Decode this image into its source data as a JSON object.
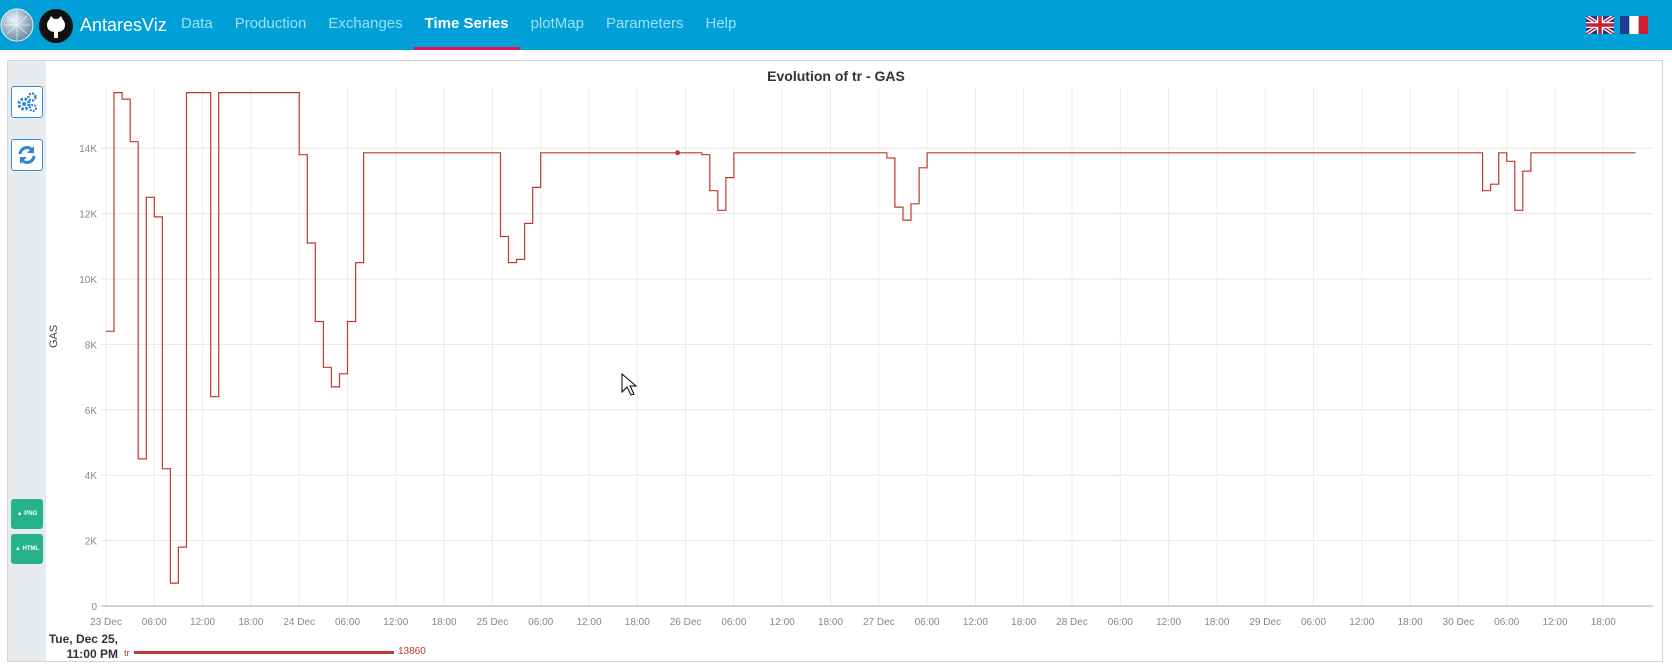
{
  "app": {
    "brand": "AntaresViz",
    "nav": [
      {
        "label": "Data",
        "active": false
      },
      {
        "label": "Production",
        "active": false
      },
      {
        "label": "Exchanges",
        "active": false
      },
      {
        "label": "Time Series",
        "active": true
      },
      {
        "label": "plotMap",
        "active": false
      },
      {
        "label": "Parameters",
        "active": false
      },
      {
        "label": "Help",
        "active": false
      }
    ],
    "languages": [
      "English (UK flag)",
      "French (FR flag)"
    ]
  },
  "sidebar": {
    "settings_icon": "gears-icon",
    "refresh_icon": "refresh-icon",
    "png_label": "PNG",
    "html_label": "HTML"
  },
  "colors": {
    "topbar": "#01a0d8",
    "series": "#c0392b",
    "active_tab": "#e0115f",
    "download": "#27b38a"
  },
  "legend": {
    "date_line1": "Tue, Dec 25,",
    "date_line2": "11:00 PM",
    "series_name": "tr",
    "series_value": "13860"
  },
  "chart_data": {
    "type": "line",
    "title": "Evolution of tr - GAS",
    "xlabel": "",
    "ylabel": "GAS",
    "ylim": [
      0,
      16000
    ],
    "yticks": [
      "0",
      "2K",
      "4K",
      "6K",
      "8K",
      "10K",
      "12K",
      "14K"
    ],
    "xticks": [
      "23 Dec",
      "06:00",
      "12:00",
      "18:00",
      "24 Dec",
      "06:00",
      "12:00",
      "18:00",
      "25 Dec",
      "06:00",
      "12:00",
      "18:00",
      "26 Dec",
      "06:00",
      "12:00",
      "18:00",
      "27 Dec",
      "06:00",
      "12:00",
      "18:00",
      "28 Dec",
      "06:00",
      "12:00",
      "18:00",
      "29 Dec",
      "06:00",
      "12:00",
      "18:00",
      "30 Dec",
      "06:00",
      "12:00",
      "18:00"
    ],
    "grid": true,
    "step": true,
    "x_unit": "hour of period",
    "highlighted_point": {
      "x": 71,
      "y": 13860
    },
    "series": [
      {
        "name": "tr",
        "points": [
          [
            0,
            8400
          ],
          [
            1,
            15700
          ],
          [
            2,
            15500
          ],
          [
            3,
            14200
          ],
          [
            4,
            4500
          ],
          [
            5,
            12500
          ],
          [
            6,
            11900
          ],
          [
            7,
            4200
          ],
          [
            8,
            700
          ],
          [
            9,
            1800
          ],
          [
            10,
            15700
          ],
          [
            13,
            6400
          ],
          [
            14,
            15700
          ],
          [
            24,
            13800
          ],
          [
            25,
            11100
          ],
          [
            26,
            8700
          ],
          [
            27,
            7300
          ],
          [
            28,
            6700
          ],
          [
            29,
            7100
          ],
          [
            30,
            8700
          ],
          [
            31,
            10500
          ],
          [
            32,
            13860
          ],
          [
            49,
            11300
          ],
          [
            50,
            10500
          ],
          [
            51,
            10600
          ],
          [
            52,
            11700
          ],
          [
            53,
            12800
          ],
          [
            54,
            13860
          ],
          [
            74,
            13800
          ],
          [
            75,
            12700
          ],
          [
            76,
            12100
          ],
          [
            77,
            13100
          ],
          [
            78,
            13860
          ],
          [
            97,
            13700
          ],
          [
            98,
            12200
          ],
          [
            99,
            11800
          ],
          [
            100,
            12300
          ],
          [
            101,
            13400
          ],
          [
            102,
            13860
          ],
          [
            171,
            12700
          ],
          [
            172,
            12900
          ],
          [
            173,
            13860
          ],
          [
            174,
            13600
          ],
          [
            175,
            12100
          ],
          [
            176,
            13300
          ],
          [
            177,
            13860
          ],
          [
            190,
            13860
          ]
        ]
      }
    ]
  }
}
